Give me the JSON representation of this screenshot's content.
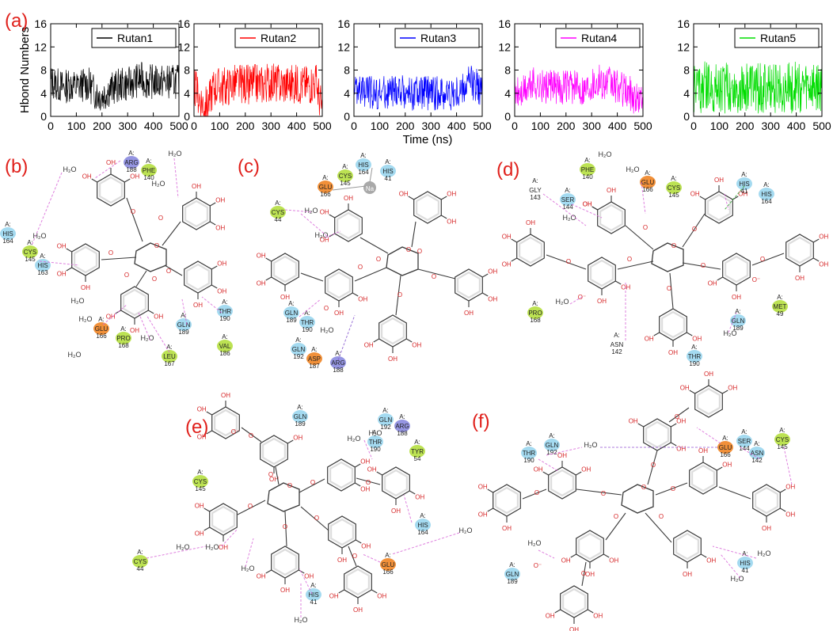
{
  "panel_labels": [
    "(a)",
    "(b)",
    "(c)",
    "(d)",
    "(e)",
    "(f)"
  ],
  "colors": {
    "panel_label": "#e0201b",
    "hbond_line": "#d96ad9",
    "green_line": "#2ca02c",
    "bond_line": "#3a3a3a",
    "oxygen_text": "#d62728",
    "residue_colors": {
      "green": "#b8e04a",
      "cyan": "#9fd8ef",
      "orange": "#f08a2e",
      "purple": "#8f8fe0",
      "gray": "#c4c4c4"
    }
  },
  "chart_data": [
    {
      "type": "line",
      "legend": [
        "Rutan1"
      ],
      "color": "#000000",
      "ylabel": "Hbond Numbers",
      "xlabel": "",
      "xlim": [
        0,
        500
      ],
      "ylim": [
        0,
        16
      ],
      "xticks": [
        "0",
        "100",
        "200",
        "300",
        "400",
        "500"
      ],
      "yticks": [
        "0",
        "4",
        "8",
        "12",
        "16"
      ],
      "x": [
        0,
        25,
        50,
        75,
        100,
        125,
        150,
        175,
        200,
        225,
        250,
        275,
        300,
        325,
        350,
        375,
        400,
        425,
        450,
        475,
        500
      ],
      "series": [
        {
          "values": [
            6,
            5.5,
            5,
            5.5,
            5,
            5.5,
            5.5,
            4,
            3.5,
            4.5,
            5,
            5.5,
            5.5,
            6,
            6.5,
            6,
            6,
            6,
            6,
            6,
            6
          ]
        }
      ]
    },
    {
      "type": "line",
      "legend": [
        "Rutan2"
      ],
      "color": "#ff0000",
      "ylabel": "",
      "xlabel": "",
      "xlim": [
        0,
        500
      ],
      "ylim": [
        0,
        16
      ],
      "xticks": [
        "0",
        "100",
        "200",
        "300",
        "400",
        "500"
      ],
      "yticks": [
        "0",
        "4",
        "8",
        "12",
        "16"
      ],
      "x": [
        0,
        25,
        50,
        75,
        100,
        125,
        150,
        175,
        200,
        225,
        250,
        275,
        300,
        325,
        350,
        375,
        400,
        425,
        450,
        475,
        500
      ],
      "series": [
        {
          "values": [
            5,
            3,
            1.5,
            5,
            5,
            5,
            5.5,
            5.5,
            5.5,
            5.5,
            5.5,
            5.5,
            6,
            5.5,
            5.5,
            5.5,
            5.5,
            5.5,
            5.5,
            6,
            1
          ]
        }
      ]
    },
    {
      "type": "line",
      "legend": [
        "Rutan3"
      ],
      "color": "#0000ff",
      "ylabel": "",
      "xlabel": "Time (ns)",
      "xlim": [
        0,
        500
      ],
      "ylim": [
        0,
        16
      ],
      "xticks": [
        "0",
        "100",
        "200",
        "300",
        "400",
        "500"
      ],
      "yticks": [
        "0",
        "4",
        "8",
        "12",
        "16"
      ],
      "x": [
        0,
        25,
        50,
        75,
        100,
        125,
        150,
        175,
        200,
        225,
        250,
        275,
        300,
        325,
        350,
        375,
        400,
        425,
        450,
        475,
        500
      ],
      "series": [
        {
          "values": [
            5,
            4,
            4.5,
            4,
            4,
            4,
            4,
            4.5,
            4,
            4,
            4,
            4,
            4,
            4,
            4,
            4,
            4,
            4.5,
            6,
            5.5,
            4
          ]
        }
      ]
    },
    {
      "type": "line",
      "legend": [
        "Rutan4"
      ],
      "color": "#ff00ff",
      "ylabel": "",
      "xlabel": "",
      "xlim": [
        0,
        500
      ],
      "ylim": [
        0,
        16
      ],
      "xticks": [
        "0",
        "100",
        "200",
        "300",
        "400",
        "500"
      ],
      "yticks": [
        "0",
        "4",
        "8",
        "12",
        "16"
      ],
      "x": [
        0,
        25,
        50,
        75,
        100,
        125,
        150,
        175,
        200,
        225,
        250,
        275,
        300,
        325,
        350,
        375,
        400,
        425,
        450,
        475,
        500
      ],
      "series": [
        {
          "values": [
            4,
            4,
            5,
            6,
            5,
            5,
            5,
            5,
            5,
            5,
            5,
            5,
            6,
            6,
            6,
            5.5,
            5,
            4.5,
            4,
            3,
            3
          ]
        }
      ]
    },
    {
      "type": "line",
      "legend": [
        "Rutan5"
      ],
      "color": "#00dd00",
      "ylabel": "",
      "xlabel": "",
      "xlim": [
        0,
        500
      ],
      "ylim": [
        0,
        16
      ],
      "xticks": [
        "0",
        "100",
        "200",
        "300",
        "400",
        "500"
      ],
      "yticks": [
        "0",
        "4",
        "8",
        "12",
        "16"
      ],
      "x": [
        0,
        25,
        50,
        75,
        100,
        125,
        150,
        175,
        200,
        225,
        250,
        275,
        300,
        325,
        350,
        375,
        400,
        425,
        450,
        475,
        500
      ],
      "series": [
        {
          "values": [
            5,
            5,
            5,
            5,
            5,
            5,
            5,
            5,
            5,
            5,
            5,
            5,
            5,
            5,
            5,
            5,
            5,
            5,
            5,
            5,
            5
          ]
        }
      ]
    }
  ],
  "residues": {
    "b": [
      {
        "chain": "A:",
        "name": "ARG",
        "num": "188",
        "color": "purple"
      },
      {
        "chain": "A:",
        "name": "PHE",
        "num": "140",
        "color": "green"
      },
      {
        "chain": "A:",
        "name": "HIS",
        "num": "164",
        "color": "cyan"
      },
      {
        "chain": "A:",
        "name": "CYS",
        "num": "145",
        "color": "green"
      },
      {
        "chain": "A:",
        "name": "HIS",
        "num": "163",
        "color": "cyan"
      },
      {
        "chain": "A:",
        "name": "GLU",
        "num": "166",
        "color": "orange"
      },
      {
        "chain": "A:",
        "name": "PRO",
        "num": "168",
        "color": "green"
      },
      {
        "chain": "A:",
        "name": "GLN",
        "num": "189",
        "color": "cyan"
      },
      {
        "chain": "A:",
        "name": "THR",
        "num": "190",
        "color": "cyan"
      },
      {
        "chain": "A:",
        "name": "LEU",
        "num": "167",
        "color": "green"
      },
      {
        "chain": "A:",
        "name": "VAL",
        "num": "186",
        "color": "green"
      }
    ],
    "c": [
      {
        "chain": "A:",
        "name": "GLU",
        "num": "166",
        "color": "orange"
      },
      {
        "chain": "A:",
        "name": "CYS",
        "num": "145",
        "color": "green"
      },
      {
        "chain": "A:",
        "name": "HIS",
        "num": "164",
        "color": "cyan"
      },
      {
        "chain": "A:",
        "name": "HIS",
        "num": "41",
        "color": "cyan"
      },
      {
        "chain": "A:",
        "name": "CYS",
        "num": "44",
        "color": "green"
      },
      {
        "chain": "A:",
        "name": "GLN",
        "num": "189",
        "color": "cyan"
      },
      {
        "chain": "A:",
        "name": "THR",
        "num": "190",
        "color": "cyan"
      },
      {
        "chain": "A:",
        "name": "GLN",
        "num": "192",
        "color": "cyan"
      },
      {
        "chain": "A:",
        "name": "ASP",
        "num": "187",
        "color": "orange"
      },
      {
        "chain": "A:",
        "name": "ARG",
        "num": "188",
        "color": "purple"
      }
    ],
    "d": [
      {
        "chain": "A:",
        "name": "GLY",
        "num": "143",
        "color": "none"
      },
      {
        "chain": "A:",
        "name": "SER",
        "num": "144",
        "color": "cyan"
      },
      {
        "chain": "A:",
        "name": "PHE",
        "num": "140",
        "color": "green"
      },
      {
        "chain": "A:",
        "name": "GLU",
        "num": "166",
        "color": "orange"
      },
      {
        "chain": "A:",
        "name": "CYS",
        "num": "145",
        "color": "green"
      },
      {
        "chain": "A:",
        "name": "HIS",
        "num": "41",
        "color": "cyan"
      },
      {
        "chain": "A:",
        "name": "HIS",
        "num": "164",
        "color": "cyan"
      },
      {
        "chain": "A:",
        "name": "PRO",
        "num": "168",
        "color": "green"
      },
      {
        "chain": "A:",
        "name": "ASN",
        "num": "142",
        "color": "none"
      },
      {
        "chain": "A:",
        "name": "GLN",
        "num": "189",
        "color": "cyan"
      },
      {
        "chain": "A:",
        "name": "MET",
        "num": "49",
        "color": "green"
      },
      {
        "chain": "A:",
        "name": "THR",
        "num": "190",
        "color": "cyan"
      }
    ],
    "e": [
      {
        "chain": "A:",
        "name": "GLN",
        "num": "189",
        "color": "cyan"
      },
      {
        "chain": "A:",
        "name": "GLN",
        "num": "192",
        "color": "cyan"
      },
      {
        "chain": "A:",
        "name": "ARG",
        "num": "188",
        "color": "purple"
      },
      {
        "chain": "A:",
        "name": "THR",
        "num": "190",
        "color": "cyan"
      },
      {
        "chain": "A:",
        "name": "TYR",
        "num": "54",
        "color": "green"
      },
      {
        "chain": "A:",
        "name": "CYS",
        "num": "145",
        "color": "green"
      },
      {
        "chain": "A:",
        "name": "HIS",
        "num": "164",
        "color": "cyan"
      },
      {
        "chain": "A:",
        "name": "GLU",
        "num": "166",
        "color": "orange"
      },
      {
        "chain": "A:",
        "name": "CYS",
        "num": "44",
        "color": "green"
      },
      {
        "chain": "A:",
        "name": "HIS",
        "num": "41",
        "color": "cyan"
      }
    ],
    "f": [
      {
        "chain": "A:",
        "name": "THR",
        "num": "190",
        "color": "cyan"
      },
      {
        "chain": "A:",
        "name": "GLN",
        "num": "192",
        "color": "cyan"
      },
      {
        "chain": "A:",
        "name": "GLU",
        "num": "166",
        "color": "orange"
      },
      {
        "chain": "A:",
        "name": "SER",
        "num": "144",
        "color": "cyan"
      },
      {
        "chain": "A:",
        "name": "CYS",
        "num": "145",
        "color": "green"
      },
      {
        "chain": "A:",
        "name": "ASN",
        "num": "142",
        "color": "cyan"
      },
      {
        "chain": "A:",
        "name": "GLN",
        "num": "189",
        "color": "cyan"
      },
      {
        "chain": "A:",
        "name": "HIS",
        "num": "41",
        "color": "cyan"
      }
    ]
  },
  "labels": {
    "water": "H₂O",
    "hydroxyl": "OH",
    "ion": "Na",
    "oxide": "O⁻"
  }
}
